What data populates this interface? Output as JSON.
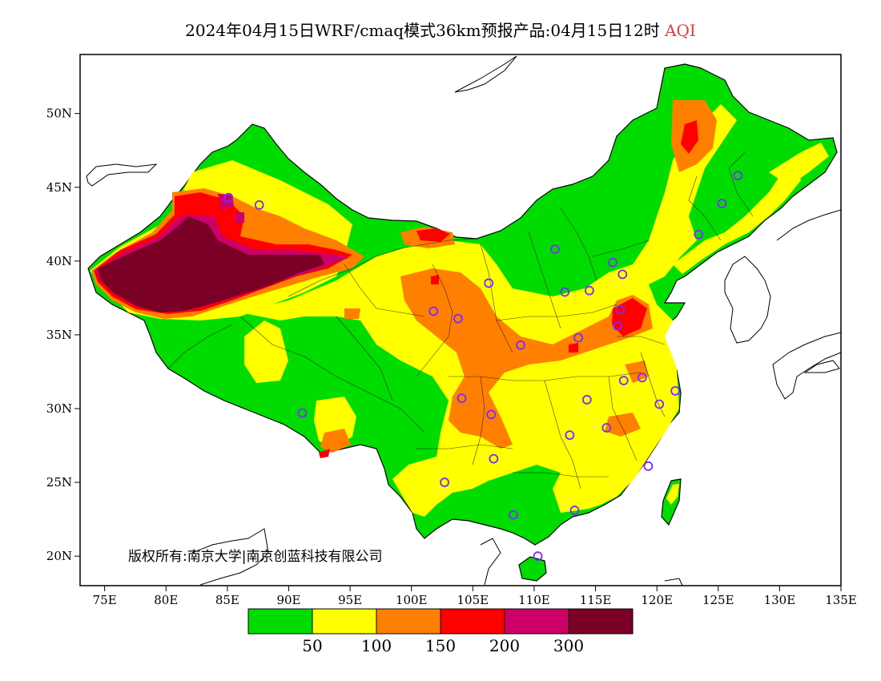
{
  "title": {
    "main": "2024年04月15日WRF/cmaq模式36km预报产品:04月15日12时",
    "variable": "AQI"
  },
  "axes": {
    "lon_ticks": [
      "75E",
      "80E",
      "85E",
      "90E",
      "95E",
      "100E",
      "105E",
      "110E",
      "115E",
      "120E",
      "125E",
      "130E",
      "135E"
    ],
    "lat_ticks": [
      "50N",
      "45N",
      "40N",
      "35N",
      "30N",
      "25N",
      "20N"
    ],
    "lon_range": [
      73,
      135
    ],
    "lat_range": [
      18,
      54
    ]
  },
  "legend": {
    "colors": [
      "#00dc00",
      "#ffff00",
      "#ff8000",
      "#ff0000",
      "#cc0066",
      "#7a0026"
    ],
    "labels": [
      "50",
      "100",
      "150",
      "200",
      "300"
    ]
  },
  "copyright": "版权所有:南京大学|南京创蓝科技有限公司",
  "stations": [
    [
      126.6,
      45.8
    ],
    [
      125.3,
      43.9
    ],
    [
      123.4,
      41.8
    ],
    [
      116.4,
      39.9
    ],
    [
      117.2,
      39.1
    ],
    [
      114.5,
      38.0
    ],
    [
      112.5,
      37.9
    ],
    [
      111.7,
      40.8
    ],
    [
      106.3,
      38.5
    ],
    [
      103.8,
      36.1
    ],
    [
      101.8,
      36.6
    ],
    [
      108.9,
      34.3
    ],
    [
      113.6,
      34.8
    ],
    [
      117.0,
      36.7
    ],
    [
      116.8,
      35.6
    ],
    [
      117.3,
      31.9
    ],
    [
      118.8,
      32.1
    ],
    [
      120.2,
      30.3
    ],
    [
      121.5,
      31.2
    ],
    [
      114.3,
      30.6
    ],
    [
      112.9,
      28.2
    ],
    [
      115.9,
      28.7
    ],
    [
      119.3,
      26.1
    ],
    [
      106.7,
      26.6
    ],
    [
      104.1,
      30.7
    ],
    [
      106.5,
      29.6
    ],
    [
      102.7,
      25.0
    ],
    [
      108.3,
      22.8
    ],
    [
      113.3,
      23.1
    ],
    [
      110.3,
      20.0
    ],
    [
      91.1,
      29.7
    ],
    [
      87.6,
      43.8
    ],
    [
      85.1,
      44.3
    ]
  ]
}
